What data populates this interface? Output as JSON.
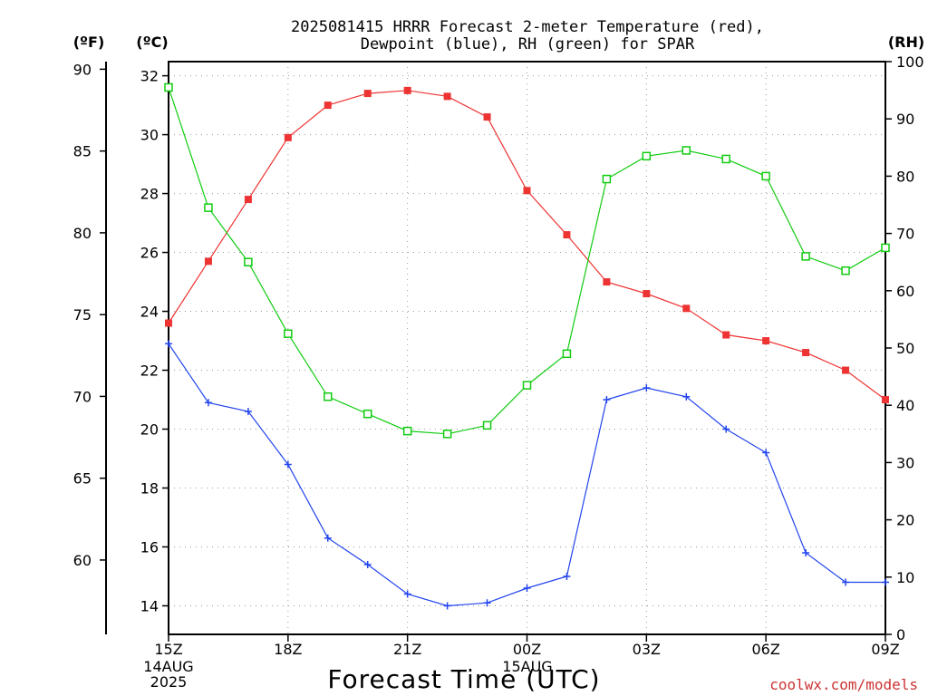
{
  "title_line1": "2025081415 HRRR Forecast 2-meter Temperature (red),",
  "title_line2": "Dewpoint (blue), RH (green) for SPAR",
  "units": {
    "fahrenheit": "(ºF)",
    "celsius": "(ºC)",
    "rh": "(RH)"
  },
  "xlabel": "Forecast Time (UTC)",
  "credit": "coolwx.com/models",
  "x_date_labels": {
    "start_day": "14AUG",
    "start_year": "2025",
    "next_day": "15AUG"
  },
  "colors": {
    "temperature": "#ee3333",
    "dewpoint": "#2244ee",
    "rh": "#11cc11"
  },
  "chart_data": {
    "type": "line",
    "x": [
      "15Z",
      "16Z",
      "17Z",
      "18Z",
      "19Z",
      "20Z",
      "21Z",
      "22Z",
      "23Z",
      "00Z",
      "01Z",
      "02Z",
      "03Z",
      "04Z",
      "05Z",
      "06Z",
      "07Z",
      "08Z",
      "09Z"
    ],
    "xticks": [
      "15Z",
      "18Z",
      "21Z",
      "00Z",
      "03Z",
      "06Z",
      "09Z"
    ],
    "series": [
      {
        "name": "Temperature (red)",
        "axis": "celsius",
        "color": "#ee3333",
        "marker": "filled-square",
        "values": [
          23.6,
          25.7,
          27.8,
          29.9,
          31.0,
          31.4,
          31.5,
          31.3,
          30.6,
          28.1,
          26.6,
          25.0,
          24.6,
          24.1,
          23.2,
          23.0,
          22.6,
          22.0,
          21.0
        ]
      },
      {
        "name": "Dewpoint (blue)",
        "axis": "celsius",
        "color": "#2244ee",
        "marker": "plus",
        "values": [
          22.9,
          20.9,
          20.6,
          18.8,
          16.3,
          15.4,
          14.4,
          14.0,
          14.1,
          14.6,
          15.0,
          21.0,
          21.4,
          21.1,
          20.0,
          19.2,
          15.8,
          14.8,
          14.8
        ]
      },
      {
        "name": "RH (green)",
        "axis": "rh",
        "color": "#11cc11",
        "marker": "open-square",
        "values": [
          95.5,
          74.5,
          65.0,
          52.5,
          41.5,
          38.5,
          35.5,
          35.0,
          36.5,
          43.5,
          49.0,
          79.5,
          83.5,
          84.5,
          83.0,
          80.0,
          66.0,
          63.5,
          67.5
        ]
      }
    ],
    "celsius_axis": {
      "ticks": [
        14,
        16,
        18,
        20,
        22,
        24,
        26,
        28,
        30,
        32
      ],
      "range": [
        13.03,
        32.48
      ]
    },
    "fahrenheit_axis": {
      "ticks": [
        60,
        65,
        70,
        75,
        80,
        85,
        90
      ]
    },
    "rh_axis": {
      "ticks": [
        0,
        10,
        20,
        30,
        40,
        50,
        60,
        70,
        80,
        90,
        100
      ],
      "range": [
        0,
        100
      ]
    },
    "grid": true
  }
}
